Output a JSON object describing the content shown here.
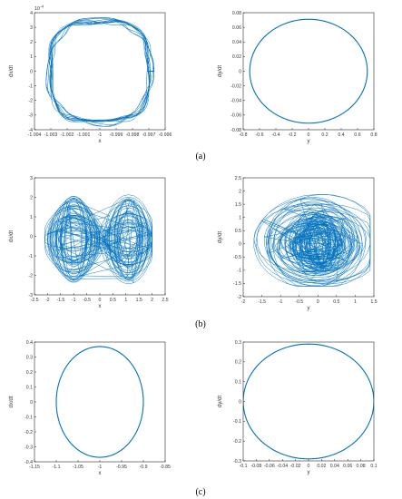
{
  "panel_labels": [
    "(a)",
    "(b)",
    "(c)"
  ],
  "colors": {
    "trace": "#0072BD",
    "axis": "#262626"
  },
  "chart_data": [
    {
      "type": "line",
      "panel": "a",
      "trace": "chaotic-ring",
      "title": "",
      "xlabel": "x",
      "ylabel": "dx/dt",
      "xlim": [
        -1.004,
        -0.996
      ],
      "ylim": [
        -4,
        4
      ],
      "xticks": [
        "-1.004",
        "-1.003",
        "-1.002",
        "-1.001",
        "-1",
        "-0.999",
        "-0.998",
        "-0.997",
        "-0.996"
      ],
      "yticks": [
        "4",
        "3",
        "2",
        "1",
        "0",
        "-1",
        "-2",
        "-3",
        "-4"
      ],
      "y_exponent_base": "10",
      "y_exponent_power": "-4",
      "shape": {
        "center": [
          -1.0,
          0.0
        ],
        "radius_x": 0.0031,
        "radius_y": 3.5
      },
      "grid": false
    },
    {
      "type": "line",
      "panel": "a",
      "trace": "ellipse",
      "title": "",
      "xlabel": "y",
      "ylabel": "dy/dt",
      "xlim": [
        -0.8,
        0.8
      ],
      "ylim": [
        -0.08,
        0.08
      ],
      "xticks": [
        "-0.8",
        "-0.6",
        "-0.4",
        "-0.2",
        "0",
        "0.2",
        "0.4",
        "0.6",
        "0.8"
      ],
      "yticks": [
        "0.08",
        "0.06",
        "0.04",
        "0.02",
        "0",
        "-0.02",
        "-0.04",
        "-0.06",
        "-0.08"
      ],
      "shape": {
        "center": [
          0.0,
          0.0
        ],
        "radius_x": 0.72,
        "radius_y": 0.071
      },
      "grid": false
    },
    {
      "type": "line",
      "panel": "b",
      "trace": "double-scroll",
      "title": "",
      "xlabel": "x",
      "ylabel": "dx/dt",
      "xlim": [
        -2.5,
        2.5
      ],
      "ylim": [
        -3,
        3
      ],
      "xticks": [
        "-2.5",
        "-2",
        "-1.5",
        "-1",
        "-0.5",
        "0",
        "0.5",
        "1",
        "1.5",
        "2",
        "2.5"
      ],
      "yticks": [
        "3",
        "2",
        "1",
        "0",
        "-1",
        "-2",
        "-3"
      ],
      "shape": {
        "lobes": [
          -1.0,
          1.1
        ],
        "x_range": [
          -2.1,
          2.0
        ],
        "y_range": [
          -2.8,
          2.3
        ]
      },
      "grid": false
    },
    {
      "type": "line",
      "panel": "b",
      "trace": "chaotic-cloud",
      "title": "",
      "xlabel": "y",
      "ylabel": "dy/dt",
      "xlim": [
        -2,
        1.5
      ],
      "ylim": [
        -2,
        2.5
      ],
      "xticks": [
        "-2",
        "-1.5",
        "-1",
        "-0.5",
        "0",
        "0.5",
        "1",
        "1.5"
      ],
      "yticks": [
        "2.5",
        "2",
        "1.5",
        "1",
        "0.5",
        "0",
        "-0.5",
        "-1",
        "-1.5",
        "-2"
      ],
      "shape": {
        "center": [
          0.0,
          0.0
        ],
        "x_range": [
          -1.8,
          1.4
        ],
        "y_range": [
          -1.6,
          1.9
        ]
      },
      "grid": false
    },
    {
      "type": "line",
      "panel": "c",
      "trace": "ellipse",
      "title": "",
      "xlabel": "x",
      "ylabel": "dx/dt",
      "xlim": [
        -1.15,
        -0.85
      ],
      "ylim": [
        -0.4,
        0.4
      ],
      "xticks": [
        "-1.15",
        "-1.1",
        "-1.05",
        "-1",
        "-0.95",
        "-0.9",
        "-0.85"
      ],
      "yticks": [
        "0.4",
        "0.3",
        "0.2",
        "0.1",
        "0",
        "-0.1",
        "-0.2",
        "-0.3",
        "-0.4"
      ],
      "shape": {
        "center": [
          -1.0,
          0.0
        ],
        "radius_x": 0.1,
        "radius_y": 0.37
      },
      "grid": false
    },
    {
      "type": "line",
      "panel": "c",
      "trace": "ellipse",
      "title": "",
      "xlabel": "y",
      "ylabel": "dy/dt",
      "xlim": [
        -0.1,
        0.1
      ],
      "ylim": [
        -0.3,
        0.3
      ],
      "xticks": [
        "-0.1",
        "-0.08",
        "-0.06",
        "-0.04",
        "-0.02",
        "0",
        "0.02",
        "0.04",
        "0.06",
        "0.08",
        "0.1"
      ],
      "yticks": [
        "0.3",
        "0.2",
        "0.1",
        "0",
        "-0.1",
        "-0.2",
        "-0.3"
      ],
      "shape": {
        "center": [
          0.0,
          0.0
        ],
        "radius_x": 0.1,
        "radius_y": 0.29
      },
      "grid": false
    }
  ]
}
